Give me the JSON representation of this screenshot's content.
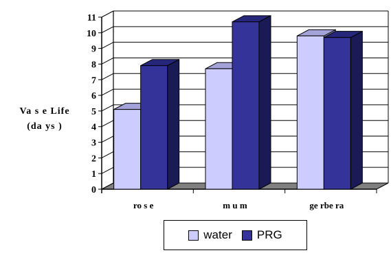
{
  "chart_data": {
    "type": "bar",
    "style": "3d-clustered-column",
    "categories": [
      "ro s e",
      "m u m",
      "ge rbe ra"
    ],
    "series": [
      {
        "name": "water",
        "values": [
          5.1,
          7.7,
          9.8
        ],
        "color": "#CCCCFF",
        "side_color": "#9999CC",
        "top_color": "#A3A3DA"
      },
      {
        "name": "PRG",
        "values": [
          7.9,
          10.7,
          9.7
        ],
        "color": "#333399",
        "side_color": "#1A1A57",
        "top_color": "#26267A"
      }
    ],
    "y_ticks": [
      "0",
      "1",
      "2",
      "3",
      "4",
      "5",
      "6",
      "7",
      "8",
      "9",
      "10",
      "11"
    ],
    "ylim": [
      0,
      11
    ],
    "ylabel": [
      "Va s e  Life",
      "(da ys )"
    ],
    "title": "",
    "xlabel": "",
    "grid": true,
    "legend_position": "bottom"
  }
}
